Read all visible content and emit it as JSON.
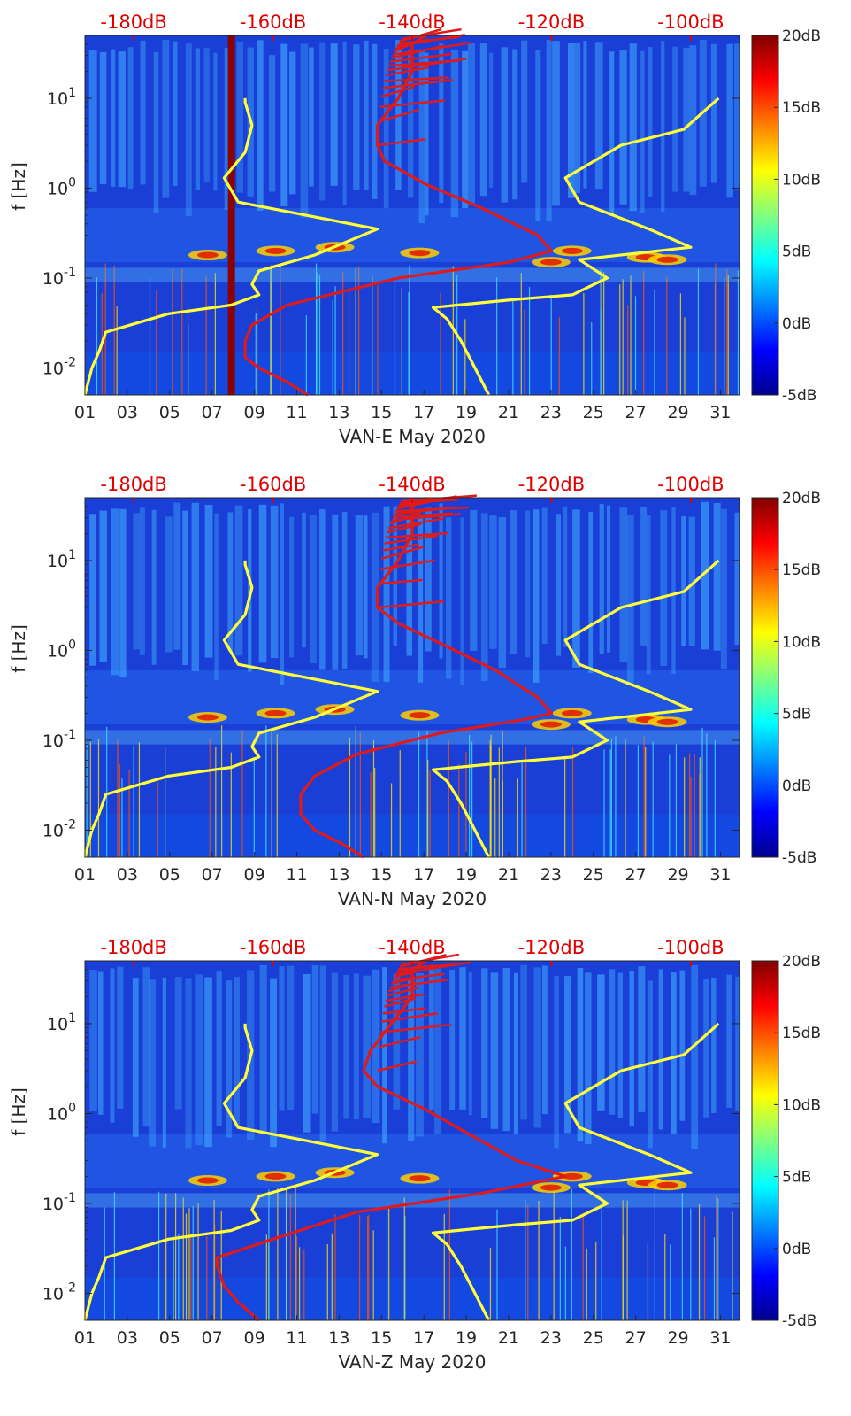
{
  "colors": {
    "spectrogram_background": "#1a3fd6",
    "lownoise_curve": "#ffff3a",
    "highnoise_curve": "#e01a1a",
    "top_axis_text": "#e00000",
    "colormap": [
      "#00008f",
      "#0000ff",
      "#0080ff",
      "#00ffff",
      "#80ff80",
      "#ffff00",
      "#ff8000",
      "#ff0000",
      "#800000"
    ]
  },
  "colorbar": {
    "tick_labels": [
      "20dB",
      "15dB",
      "10dB",
      "5dB",
      "0dB",
      "-5dB"
    ],
    "range_db": [
      -5,
      20
    ]
  },
  "chart_data": [
    {
      "type": "heatmap",
      "xlabel": "VAN-E May 2020",
      "ylabel": "f [Hz]",
      "x_ticks": [
        "01",
        "03",
        "05",
        "07",
        "09",
        "11",
        "13",
        "15",
        "17",
        "19",
        "21",
        "23",
        "25",
        "27",
        "29",
        "31"
      ],
      "x_range_days": [
        1,
        31.9
      ],
      "y_ticks": [
        "10^1",
        "10^0",
        "10^-1",
        "10^-2"
      ],
      "y_scale": "log",
      "y_range_hz": [
        0.005,
        50
      ],
      "top_axis_ticks": [
        "-180dB",
        "-160dB",
        "-140dB",
        "-120dB",
        "-100dB"
      ],
      "top_axis_range_db": [
        -187,
        -93
      ],
      "series": [
        {
          "color": "#ffff3a",
          "points": [
            [
              -187,
              0.005
            ],
            [
              -186,
              0.01
            ],
            [
              -185,
              0.015
            ],
            [
              -184,
              0.025
            ],
            [
              -175,
              0.04
            ],
            [
              -166,
              0.05
            ],
            [
              -162,
              0.065
            ],
            [
              -163,
              0.085
            ],
            [
              -162,
              0.12
            ],
            [
              -154,
              0.18
            ],
            [
              -145,
              0.35
            ],
            [
              -165,
              0.7
            ],
            [
              -167,
              1.3
            ],
            [
              -164,
              2.5
            ],
            [
              -163,
              5
            ],
            [
              -164,
              9
            ],
            [
              -164,
              10
            ]
          ]
        },
        {
          "color": "#ffff3a",
          "points": [
            [
              -129,
              0.005
            ],
            [
              -131,
              0.01
            ],
            [
              -133,
              0.02
            ],
            [
              -135,
              0.035
            ],
            [
              -137,
              0.047
            ],
            [
              -125,
              0.058
            ],
            [
              -117,
              0.065
            ],
            [
              -112,
              0.1
            ],
            [
              -116,
              0.16
            ],
            [
              -100,
              0.22
            ],
            [
              -106,
              0.35
            ],
            [
              -116,
              0.7
            ],
            [
              -118,
              1.3
            ],
            [
              -110,
              3
            ],
            [
              -101,
              4.5
            ],
            [
              -96,
              10
            ]
          ]
        },
        {
          "color": "#e01a1a",
          "points": [
            [
              -155,
              0.005
            ],
            [
              -158,
              0.007
            ],
            [
              -162,
              0.01
            ],
            [
              -164,
              0.013
            ],
            [
              -164,
              0.02
            ],
            [
              -163,
              0.03
            ],
            [
              -158,
              0.05
            ],
            [
              -142,
              0.1
            ],
            [
              -126,
              0.15
            ],
            [
              -120,
              0.2
            ],
            [
              -122,
              0.3
            ],
            [
              -130,
              0.6
            ],
            [
              -138,
              1.1
            ],
            [
              -144,
              2
            ],
            [
              -145,
              3
            ],
            [
              -145,
              5
            ],
            [
              -142,
              10
            ],
            [
              -140,
              20
            ],
            [
              -140,
              40
            ],
            [
              -138,
              50
            ]
          ]
        }
      ]
    },
    {
      "type": "heatmap",
      "xlabel": "VAN-N May 2020",
      "ylabel": "f [Hz]",
      "x_ticks": [
        "01",
        "03",
        "05",
        "07",
        "09",
        "11",
        "13",
        "15",
        "17",
        "19",
        "21",
        "23",
        "25",
        "27",
        "29",
        "31"
      ],
      "x_range_days": [
        1,
        31.9
      ],
      "y_ticks": [
        "10^1",
        "10^0",
        "10^-1",
        "10^-2"
      ],
      "y_scale": "log",
      "y_range_hz": [
        0.005,
        50
      ],
      "top_axis_ticks": [
        "-180dB",
        "-160dB",
        "-140dB",
        "-120dB",
        "-100dB"
      ],
      "top_axis_range_db": [
        -187,
        -93
      ],
      "series": [
        {
          "color": "#ffff3a",
          "points": [
            [
              -187,
              0.005
            ],
            [
              -186,
              0.01
            ],
            [
              -185,
              0.015
            ],
            [
              -184,
              0.025
            ],
            [
              -175,
              0.04
            ],
            [
              -166,
              0.05
            ],
            [
              -162,
              0.065
            ],
            [
              -163,
              0.085
            ],
            [
              -162,
              0.12
            ],
            [
              -154,
              0.18
            ],
            [
              -145,
              0.35
            ],
            [
              -165,
              0.7
            ],
            [
              -167,
              1.3
            ],
            [
              -164,
              2.5
            ],
            [
              -163,
              5
            ],
            [
              -164,
              9
            ],
            [
              -164,
              10
            ]
          ]
        },
        {
          "color": "#ffff3a",
          "points": [
            [
              -129,
              0.005
            ],
            [
              -131,
              0.01
            ],
            [
              -133,
              0.02
            ],
            [
              -135,
              0.035
            ],
            [
              -137,
              0.047
            ],
            [
              -125,
              0.058
            ],
            [
              -117,
              0.065
            ],
            [
              -112,
              0.1
            ],
            [
              -116,
              0.16
            ],
            [
              -100,
              0.22
            ],
            [
              -106,
              0.35
            ],
            [
              -116,
              0.7
            ],
            [
              -118,
              1.3
            ],
            [
              -110,
              3
            ],
            [
              -101,
              4.5
            ],
            [
              -96,
              10
            ]
          ]
        },
        {
          "color": "#e01a1a",
          "points": [
            [
              -147,
              0.005
            ],
            [
              -150,
              0.007
            ],
            [
              -154,
              0.01
            ],
            [
              -156,
              0.015
            ],
            [
              -156,
              0.025
            ],
            [
              -154,
              0.04
            ],
            [
              -148,
              0.07
            ],
            [
              -136,
              0.12
            ],
            [
              -124,
              0.17
            ],
            [
              -120,
              0.2
            ],
            [
              -122,
              0.3
            ],
            [
              -128,
              0.6
            ],
            [
              -135,
              1.1
            ],
            [
              -142,
              2
            ],
            [
              -145,
              3
            ],
            [
              -145,
              5
            ],
            [
              -142,
              10
            ],
            [
              -140,
              20
            ],
            [
              -140,
              40
            ],
            [
              -138,
              50
            ]
          ]
        }
      ]
    },
    {
      "type": "heatmap",
      "xlabel": "VAN-Z May 2020",
      "ylabel": "f [Hz]",
      "x_ticks": [
        "01",
        "03",
        "05",
        "07",
        "09",
        "11",
        "13",
        "15",
        "17",
        "19",
        "21",
        "23",
        "25",
        "27",
        "29",
        "31"
      ],
      "x_range_days": [
        1,
        31.9
      ],
      "y_ticks": [
        "10^1",
        "10^0",
        "10^-1",
        "10^-2"
      ],
      "y_scale": "log",
      "y_range_hz": [
        0.005,
        50
      ],
      "top_axis_ticks": [
        "-180dB",
        "-160dB",
        "-140dB",
        "-120dB",
        "-100dB"
      ],
      "top_axis_range_db": [
        -187,
        -93
      ],
      "series": [
        {
          "color": "#ffff3a",
          "points": [
            [
              -187,
              0.005
            ],
            [
              -186,
              0.01
            ],
            [
              -185,
              0.015
            ],
            [
              -184,
              0.025
            ],
            [
              -175,
              0.04
            ],
            [
              -166,
              0.05
            ],
            [
              -162,
              0.065
            ],
            [
              -163,
              0.085
            ],
            [
              -162,
              0.12
            ],
            [
              -154,
              0.18
            ],
            [
              -145,
              0.35
            ],
            [
              -165,
              0.7
            ],
            [
              -167,
              1.3
            ],
            [
              -164,
              2.5
            ],
            [
              -163,
              5
            ],
            [
              -164,
              9
            ],
            [
              -164,
              10
            ]
          ]
        },
        {
          "color": "#ffff3a",
          "points": [
            [
              -129,
              0.005
            ],
            [
              -131,
              0.01
            ],
            [
              -133,
              0.02
            ],
            [
              -135,
              0.035
            ],
            [
              -137,
              0.047
            ],
            [
              -125,
              0.058
            ],
            [
              -117,
              0.065
            ],
            [
              -112,
              0.1
            ],
            [
              -116,
              0.16
            ],
            [
              -100,
              0.22
            ],
            [
              -106,
              0.35
            ],
            [
              -116,
              0.7
            ],
            [
              -118,
              1.3
            ],
            [
              -110,
              3
            ],
            [
              -101,
              4.5
            ],
            [
              -96,
              10
            ]
          ]
        },
        {
          "color": "#e01a1a",
          "points": [
            [
              -162,
              0.005
            ],
            [
              -165,
              0.008
            ],
            [
              -167,
              0.012
            ],
            [
              -168,
              0.02
            ],
            [
              -168,
              0.025
            ],
            [
              -160,
              0.04
            ],
            [
              -148,
              0.08
            ],
            [
              -130,
              0.13
            ],
            [
              -118,
              0.2
            ],
            [
              -125,
              0.3
            ],
            [
              -132,
              0.6
            ],
            [
              -138,
              1.1
            ],
            [
              -145,
              2
            ],
            [
              -147,
              3
            ],
            [
              -146,
              5
            ],
            [
              -143,
              10
            ],
            [
              -140,
              20
            ],
            [
              -140,
              40
            ],
            [
              -138,
              50
            ]
          ]
        }
      ]
    }
  ]
}
